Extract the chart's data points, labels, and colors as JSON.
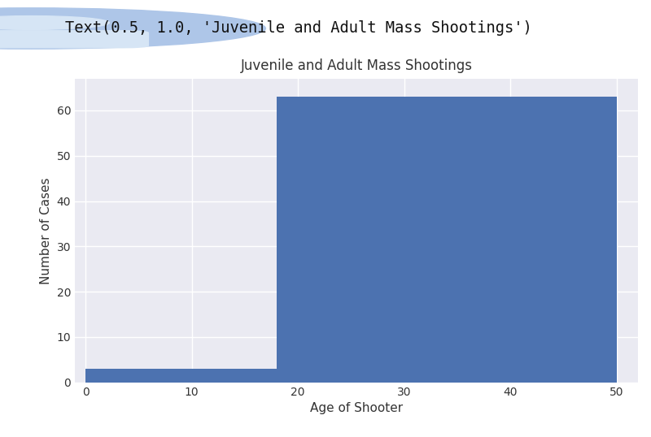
{
  "title": "Juvenile and Adult Mass Shootings",
  "xlabel": "Age of Shooter",
  "ylabel": "Number of Cases",
  "bar_color": "#4c72b0",
  "bins": [
    0,
    18,
    50
  ],
  "counts": [
    3,
    63
  ],
  "xlim": [
    -1,
    52
  ],
  "ylim": [
    0,
    67
  ],
  "yticks": [
    0,
    10,
    20,
    30,
    40,
    50,
    60
  ],
  "xticks": [
    0,
    10,
    20,
    30,
    40,
    50
  ],
  "header_text": "Text(0.5, 1.0, 'Juvenile and Adult Mass Shootings')",
  "header_bg_color": "#f7f7f7",
  "plot_bg_color": "#eaeaf2",
  "grid_color": "#ffffff",
  "fig_bg_color": "#ffffff",
  "icon_bg_color": "#aec6e8",
  "icon_fg_color": "#d6e5f5",
  "title_fontsize": 12,
  "label_fontsize": 11,
  "tick_fontsize": 10
}
